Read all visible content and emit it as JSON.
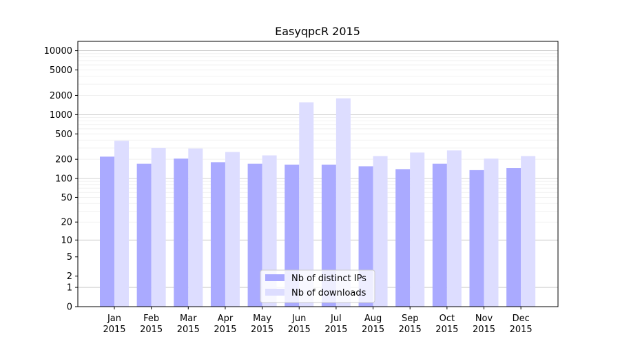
{
  "chart_data": {
    "type": "bar",
    "title": "EasyqpcR 2015",
    "xlabel": "",
    "ylabel": "",
    "yscale": "symlog",
    "ylim": [
      0,
      14000
    ],
    "y_ticks": [
      0,
      1,
      2,
      5,
      10,
      20,
      50,
      100,
      200,
      500,
      1000,
      2000,
      5000,
      10000
    ],
    "y_tick_labels": [
      "0",
      "1",
      "2",
      "5",
      "10",
      "20",
      "50",
      "100",
      "200",
      "500",
      "1000",
      "2000",
      "5000",
      "10000"
    ],
    "grid": "horizontal",
    "legend_position": "lower-center",
    "categories": [
      [
        "Jan",
        "2015"
      ],
      [
        "Feb",
        "2015"
      ],
      [
        "Mar",
        "2015"
      ],
      [
        "Apr",
        "2015"
      ],
      [
        "May",
        "2015"
      ],
      [
        "Jun",
        "2015"
      ],
      [
        "Jul",
        "2015"
      ],
      [
        "Aug",
        "2015"
      ],
      [
        "Sep",
        "2015"
      ],
      [
        "Oct",
        "2015"
      ],
      [
        "Nov",
        "2015"
      ],
      [
        "Dec",
        "2015"
      ]
    ],
    "series": [
      {
        "name": "Nb of distinct IPs",
        "color": "#aaaaff",
        "values": [
          220,
          170,
          205,
          180,
          170,
          165,
          165,
          155,
          140,
          170,
          135,
          145
        ]
      },
      {
        "name": "Nb of downloads",
        "color": "#ddddff",
        "values": [
          390,
          300,
          295,
          260,
          230,
          1560,
          1800,
          225,
          255,
          275,
          205,
          225
        ]
      }
    ]
  }
}
